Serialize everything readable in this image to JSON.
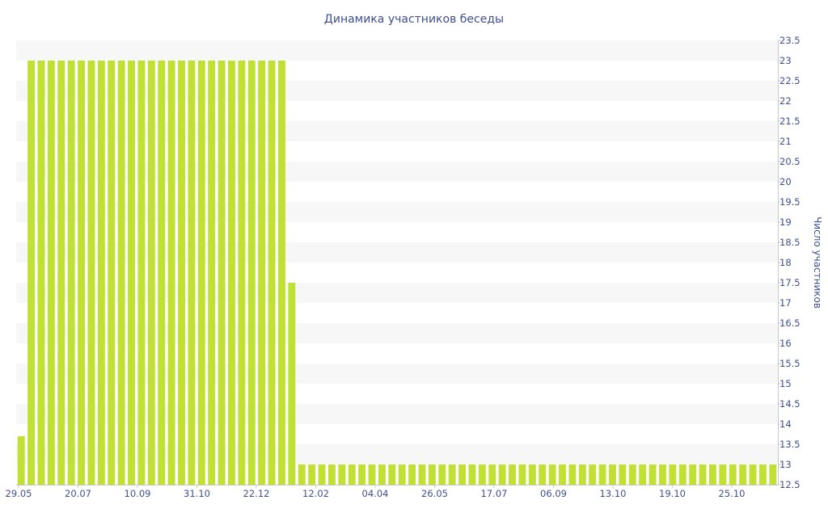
{
  "chart_data": {
    "type": "bar",
    "title": "Динамика участников беседы",
    "xlabel": "",
    "ylabel": "Число участников",
    "y_axis_side": "right",
    "ylim": [
      12.5,
      23.5
    ],
    "ytick_step": 0.5,
    "grid": "horizontal bands",
    "legend": "none",
    "bar_color": "#c0e033",
    "band_color": "#f7f7f7",
    "text_color": "#3f4f8e",
    "x_tick_labels": [
      "29.05",
      "20.07",
      "10.09",
      "31.10",
      "22.12",
      "12.02",
      "04.04",
      "26.05",
      "17.07",
      "06.09",
      "13.10",
      "19.10",
      "25.10"
    ],
    "series": [
      {
        "values": [
          13.7,
          23,
          23,
          23,
          23,
          23,
          23,
          23,
          23,
          23,
          23,
          23,
          23,
          23,
          23,
          23,
          23,
          23,
          23,
          23,
          23,
          23,
          23,
          23,
          23,
          23,
          23,
          17.5,
          13,
          13,
          13,
          13,
          13,
          13,
          13,
          13,
          13,
          13,
          13,
          13,
          13,
          13,
          13,
          13,
          13,
          13,
          13,
          13,
          13,
          13,
          13,
          13,
          13,
          13,
          13,
          13,
          13,
          13,
          13,
          13,
          13,
          13,
          13,
          13,
          13,
          13,
          13,
          13,
          13,
          13,
          13,
          13,
          13,
          13,
          13,
          13
        ]
      }
    ]
  }
}
